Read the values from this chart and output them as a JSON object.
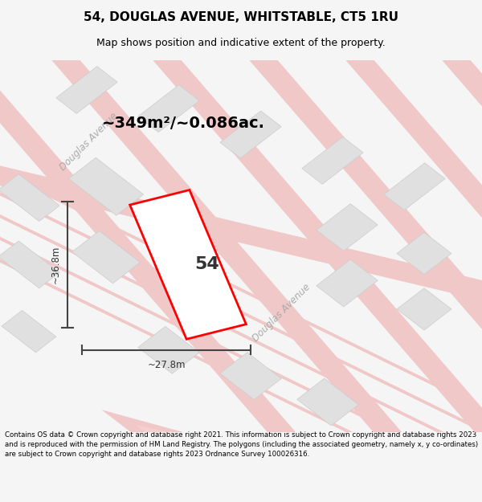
{
  "title": "54, DOUGLAS AVENUE, WHITSTABLE, CT5 1RU",
  "subtitle": "Map shows position and indicative extent of the property.",
  "area_text": "~349m²/~0.086ac.",
  "number_label": "54",
  "dim_width": "~27.8m",
  "dim_height": "~36.8m",
  "footer_text": "Contains OS data © Crown copyright and database right 2021. This information is subject to Crown copyright and database rights 2023 and is reproduced with the permission of HM Land Registry. The polygons (including the associated geometry, namely x, y co-ordinates) are subject to Crown copyright and database rights 2023 Ordnance Survey 100026316.",
  "bg_color": "#f5f5f5",
  "map_bg": "#ffffff",
  "road_color": "#f0c8c8",
  "block_color": "#e0e0e0",
  "highlight_color": "#ff0000",
  "road_label_color": "#aaaaaa",
  "title_color": "#000000",
  "footer_color": "#000000"
}
